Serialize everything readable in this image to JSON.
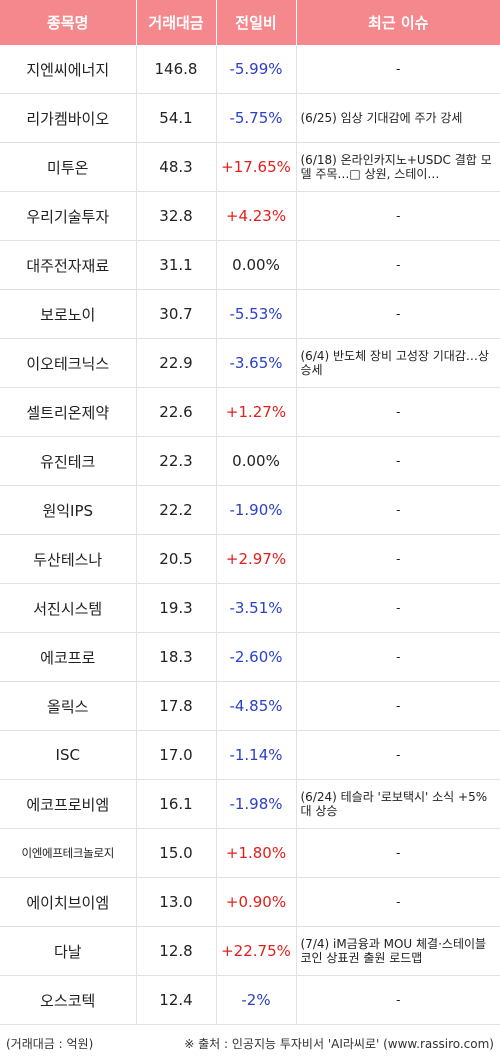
{
  "headers": [
    "종목명",
    "거래대금",
    "전일비",
    "최근 이슈"
  ],
  "rows": [
    {
      "name": "지엔씨에너지",
      "amount": "146.8",
      "change": "-5.99%",
      "dir": "down",
      "issue": "-"
    },
    {
      "name": "리가켐바이오",
      "amount": "54.1",
      "change": "-5.75%",
      "dir": "down",
      "issue": "(6/25) 임상 기대감에 주가 강세"
    },
    {
      "name": "미투온",
      "amount": "48.3",
      "change": "+17.65%",
      "dir": "up",
      "issue": "(6/18) 온라인카지노+USDC 결합 모델 주목…□ 상원, 스테이…"
    },
    {
      "name": "우리기술투자",
      "amount": "32.8",
      "change": "+4.23%",
      "dir": "up",
      "issue": "-"
    },
    {
      "name": "대주전자재료",
      "amount": "31.1",
      "change": "0.00%",
      "dir": "flat",
      "issue": "-"
    },
    {
      "name": "보로노이",
      "amount": "30.7",
      "change": "-5.53%",
      "dir": "down",
      "issue": "-"
    },
    {
      "name": "이오테크닉스",
      "amount": "22.9",
      "change": "-3.65%",
      "dir": "down",
      "issue": "(6/4) 반도체 장비 고성장 기대감…상승세"
    },
    {
      "name": "셀트리온제약",
      "amount": "22.6",
      "change": "+1.27%",
      "dir": "up",
      "issue": "-"
    },
    {
      "name": "유진테크",
      "amount": "22.3",
      "change": "0.00%",
      "dir": "flat",
      "issue": "-"
    },
    {
      "name": "원익IPS",
      "amount": "22.2",
      "change": "-1.90%",
      "dir": "down",
      "issue": "-"
    },
    {
      "name": "두산테스나",
      "amount": "20.5",
      "change": "+2.97%",
      "dir": "up",
      "issue": "-"
    },
    {
      "name": "서진시스템",
      "amount": "19.3",
      "change": "-3.51%",
      "dir": "down",
      "issue": "-"
    },
    {
      "name": "에코프로",
      "amount": "18.3",
      "change": "-2.60%",
      "dir": "down",
      "issue": "-"
    },
    {
      "name": "올릭스",
      "amount": "17.8",
      "change": "-4.85%",
      "dir": "down",
      "issue": "-"
    },
    {
      "name": "ISC",
      "amount": "17.0",
      "change": "-1.14%",
      "dir": "down",
      "issue": "-"
    },
    {
      "name": "에코프로비엠",
      "amount": "16.1",
      "change": "-1.98%",
      "dir": "down",
      "issue": "(6/24) 테슬라 '로보택시' 소식 +5%대 상승"
    },
    {
      "name": "이엔에프테크놀로지",
      "amount": "15.0",
      "change": "+1.80%",
      "dir": "up",
      "issue": "-",
      "small": true
    },
    {
      "name": "에이치브이엠",
      "amount": "13.0",
      "change": "+0.90%",
      "dir": "up",
      "issue": "-"
    },
    {
      "name": "다날",
      "amount": "12.8",
      "change": "+22.75%",
      "dir": "up",
      "issue": "(7/4) iM금융과 MOU 체결·스테이블코인 상표권 출원 로드맵"
    },
    {
      "name": "오스코텍",
      "amount": "12.4",
      "change": "-2%",
      "dir": "down",
      "issue": "-"
    }
  ],
  "footer": {
    "left": "(거래대금 : 억원)",
    "right": "※ 출처 : 인공지능 투자비서 'AI라씨로' (www.rassiro.com)"
  }
}
